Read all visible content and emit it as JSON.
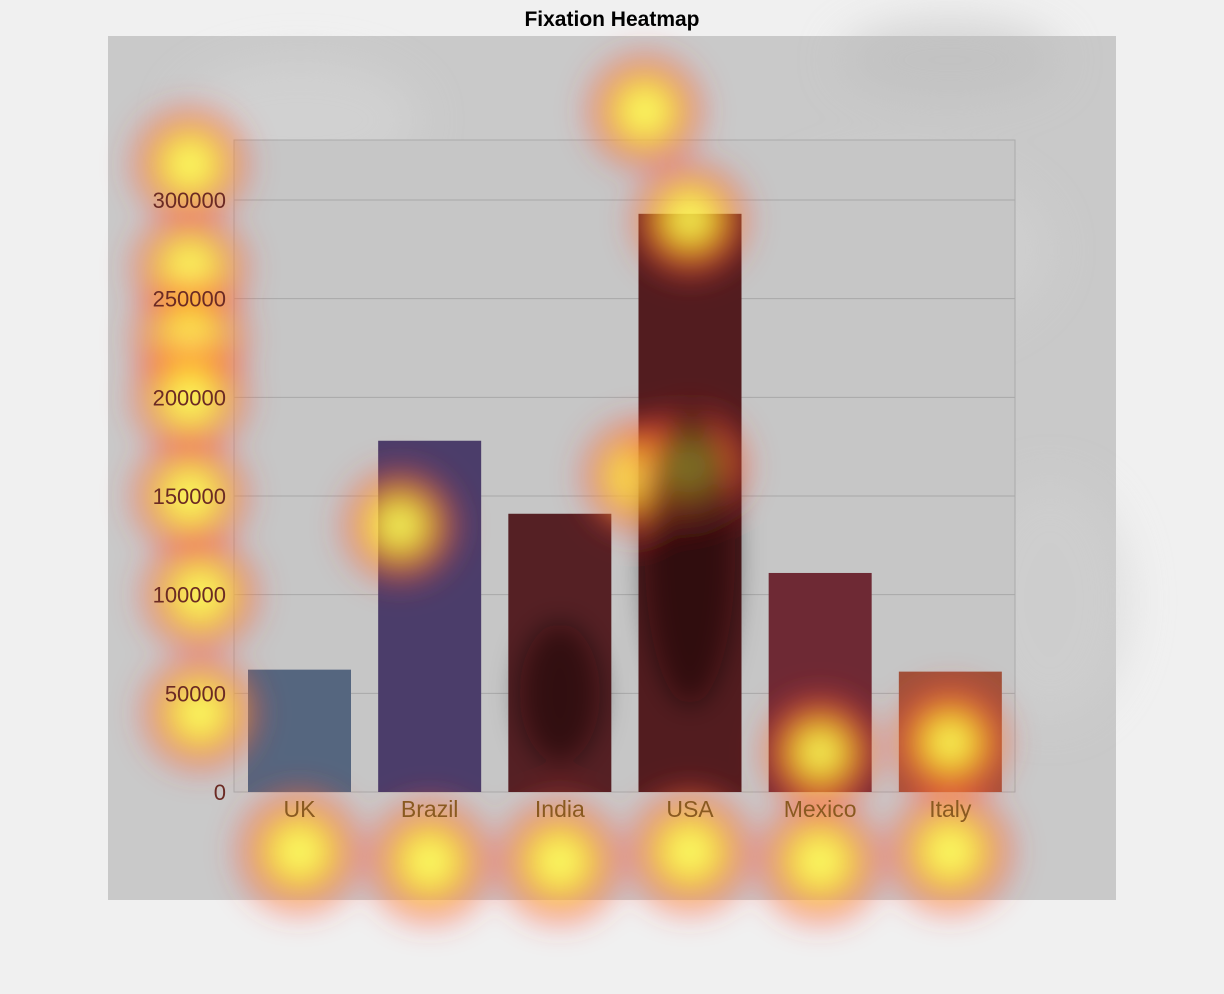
{
  "page": {
    "title": "Fixation Heatmap"
  },
  "chart_data": {
    "type": "bar",
    "categories": [
      "UK",
      "Brazil",
      "India",
      "USA",
      "Mexico",
      "Italy"
    ],
    "values": [
      62000,
      178000,
      141000,
      293000,
      111000,
      61000
    ],
    "bar_colors": [
      "#55667f",
      "#4b3d6a",
      "#552024",
      "#521c1f",
      "#6e2934",
      "#a0513a"
    ],
    "yticks": [
      0,
      50000,
      100000,
      150000,
      200000,
      250000,
      300000
    ],
    "ylim": [
      0,
      330000
    ],
    "grid": true,
    "xlabel": "",
    "ylabel": "",
    "overlay": {
      "type": "fixation-heatmap",
      "colormap": [
        "#ff3c3c",
        "#ff9a2e",
        "#ffff1e",
        "#ffffff"
      ],
      "hotspots": [
        {
          "category": "UK",
          "value": 318000
        },
        {
          "category": "UK",
          "value": 265000
        },
        {
          "category": "UK",
          "value": 230000
        },
        {
          "category": "UK",
          "value": 200000
        },
        {
          "category": "UK",
          "value": 150000
        },
        {
          "category": "UK",
          "value": 100000
        },
        {
          "category": "UK",
          "value": 40000
        },
        {
          "category": "UK",
          "value": -15000
        },
        {
          "category": "Brazil",
          "value": -20000
        },
        {
          "category": "Brazil",
          "value": 135000
        },
        {
          "category": "India",
          "value": -20000
        },
        {
          "category": "India",
          "value": 160000
        },
        {
          "category": "USA",
          "value": 165000
        },
        {
          "category": "USA",
          "value": 290000
        },
        {
          "category": "USA",
          "value": 345000
        },
        {
          "category": "USA",
          "value": -15000
        },
        {
          "category": "Mexico",
          "value": -20000
        },
        {
          "category": "Mexico",
          "value": 20000
        },
        {
          "category": "Italy",
          "value": -15000
        },
        {
          "category": "Italy",
          "value": 25000
        }
      ]
    }
  }
}
